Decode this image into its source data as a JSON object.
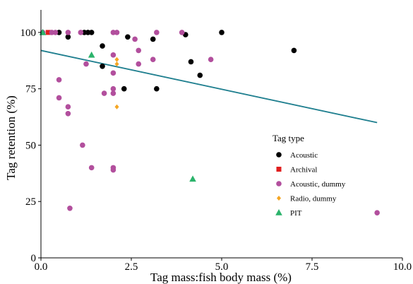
{
  "chart_data": {
    "type": "scatter",
    "xlabel": "Tag mass:fish body mass (%)",
    "ylabel": "Tag retention (%)",
    "xlim": [
      0,
      10
    ],
    "ylim": [
      0,
      110
    ],
    "x_ticks": [
      "0.0",
      "2.5",
      "5.0",
      "7.5",
      "10.0"
    ],
    "y_ticks": [
      "0",
      "25",
      "50",
      "75",
      "100"
    ],
    "grid": false,
    "legend": {
      "title": "Tag type",
      "placement": "right"
    },
    "series": [
      {
        "name": "Acoustic",
        "marker": "circle",
        "color": "#000000",
        "points": [
          [
            0.5,
            100
          ],
          [
            0.75,
            98
          ],
          [
            1.2,
            100
          ],
          [
            1.3,
            100
          ],
          [
            1.4,
            100
          ],
          [
            1.7,
            94
          ],
          [
            1.7,
            85
          ],
          [
            2.3,
            75
          ],
          [
            2.4,
            98
          ],
          [
            3.1,
            97
          ],
          [
            3.2,
            75
          ],
          [
            4.0,
            99
          ],
          [
            4.15,
            87
          ],
          [
            4.4,
            81
          ],
          [
            5.0,
            100
          ],
          [
            7.0,
            92
          ]
        ]
      },
      {
        "name": "Archival",
        "marker": "square",
        "color": "#e01e1e",
        "points": [
          [
            0.2,
            100
          ]
        ]
      },
      {
        "name": "Acoustic, dummy",
        "marker": "circle",
        "color": "#b24f9d",
        "points": [
          [
            0.05,
            100
          ],
          [
            0.3,
            100
          ],
          [
            0.4,
            100
          ],
          [
            0.5,
            79
          ],
          [
            0.5,
            71
          ],
          [
            0.75,
            100
          ],
          [
            0.75,
            67
          ],
          [
            0.75,
            64
          ],
          [
            0.8,
            22
          ],
          [
            1.1,
            100
          ],
          [
            1.15,
            50
          ],
          [
            1.25,
            86
          ],
          [
            1.4,
            40
          ],
          [
            1.75,
            73
          ],
          [
            2.0,
            100
          ],
          [
            2.0,
            90
          ],
          [
            2.0,
            82
          ],
          [
            2.0,
            75
          ],
          [
            2.0,
            73
          ],
          [
            2.0,
            40
          ],
          [
            2.0,
            39
          ],
          [
            2.1,
            100
          ],
          [
            2.6,
            97
          ],
          [
            2.7,
            92
          ],
          [
            2.7,
            86
          ],
          [
            3.1,
            88
          ],
          [
            3.2,
            100
          ],
          [
            3.9,
            100
          ],
          [
            4.7,
            88
          ],
          [
            9.3,
            20
          ]
        ]
      },
      {
        "name": "Radio, dummy",
        "marker": "diamond",
        "color": "#f5a623",
        "points": [
          [
            2.1,
            88
          ],
          [
            2.1,
            86
          ],
          [
            2.1,
            67
          ]
        ]
      },
      {
        "name": "PIT",
        "marker": "triangle",
        "color": "#2bb36b",
        "points": [
          [
            0.05,
            100
          ],
          [
            1.4,
            90
          ],
          [
            4.2,
            35
          ]
        ]
      }
    ],
    "trend_line": {
      "color": "#1f7f8f",
      "x": [
        0.0,
        9.3
      ],
      "y": [
        92,
        60
      ]
    }
  }
}
